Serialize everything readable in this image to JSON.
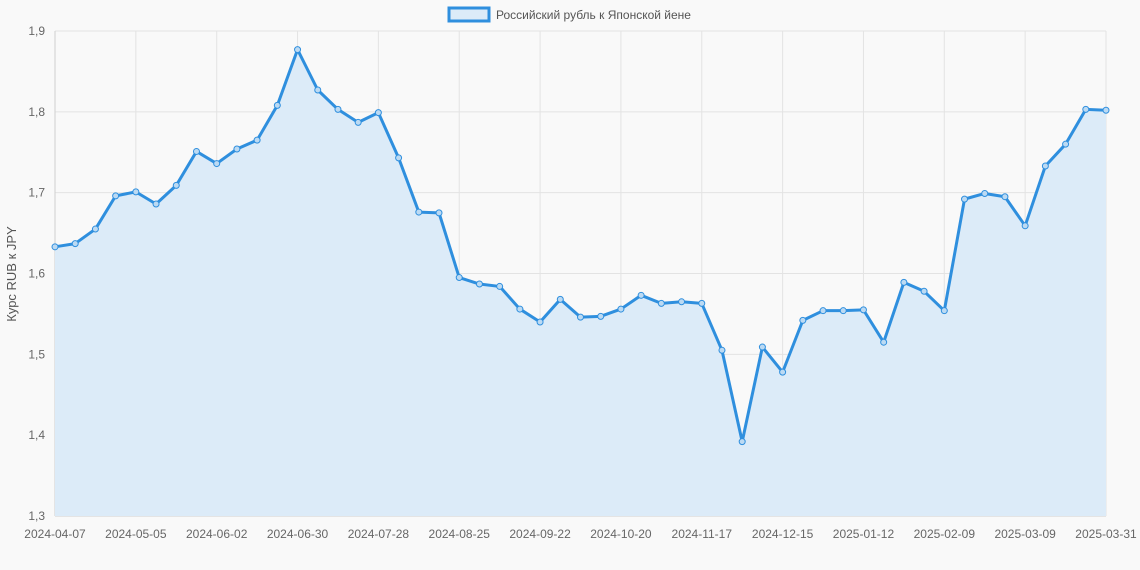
{
  "chart_data": {
    "type": "line",
    "ylabel": "Курс RUB к JPY",
    "xlabel": "",
    "ylim": [
      1.3,
      1.9
    ],
    "yticks": [
      "1,3",
      "1,4",
      "1,5",
      "1,6",
      "1,7",
      "1,8",
      "1,9"
    ],
    "x_tick_labels": [
      "2024-04-07",
      "2024-05-05",
      "2024-06-02",
      "2024-06-30",
      "2024-07-28",
      "2024-08-25",
      "2024-09-22",
      "2024-10-20",
      "2024-11-17",
      "2024-12-15",
      "2025-01-12",
      "2025-02-09",
      "2025-03-09",
      "2025-03-31"
    ],
    "x_tick_index": [
      0,
      4,
      8,
      12,
      16,
      20,
      24,
      28,
      32,
      36,
      40,
      44,
      48,
      52
    ],
    "grid": true,
    "legend_position": "top",
    "series": [
      {
        "name": "Российский рубль к Японской йене",
        "color": "#2f8fde",
        "fill": "#dcebf8",
        "values": [
          1.633,
          1.637,
          1.655,
          1.696,
          1.701,
          1.686,
          1.709,
          1.751,
          1.736,
          1.754,
          1.765,
          1.808,
          1.877,
          1.827,
          1.803,
          1.787,
          1.799,
          1.743,
          1.676,
          1.675,
          1.595,
          1.587,
          1.584,
          1.556,
          1.54,
          1.568,
          1.546,
          1.547,
          1.556,
          1.573,
          1.563,
          1.565,
          1.563,
          1.505,
          1.392,
          1.509,
          1.478,
          1.542,
          1.554,
          1.554,
          1.555,
          1.515,
          1.589,
          1.578,
          1.554,
          1.692,
          1.699,
          1.695,
          1.659,
          1.733,
          1.76,
          1.803,
          1.802
        ]
      }
    ]
  }
}
